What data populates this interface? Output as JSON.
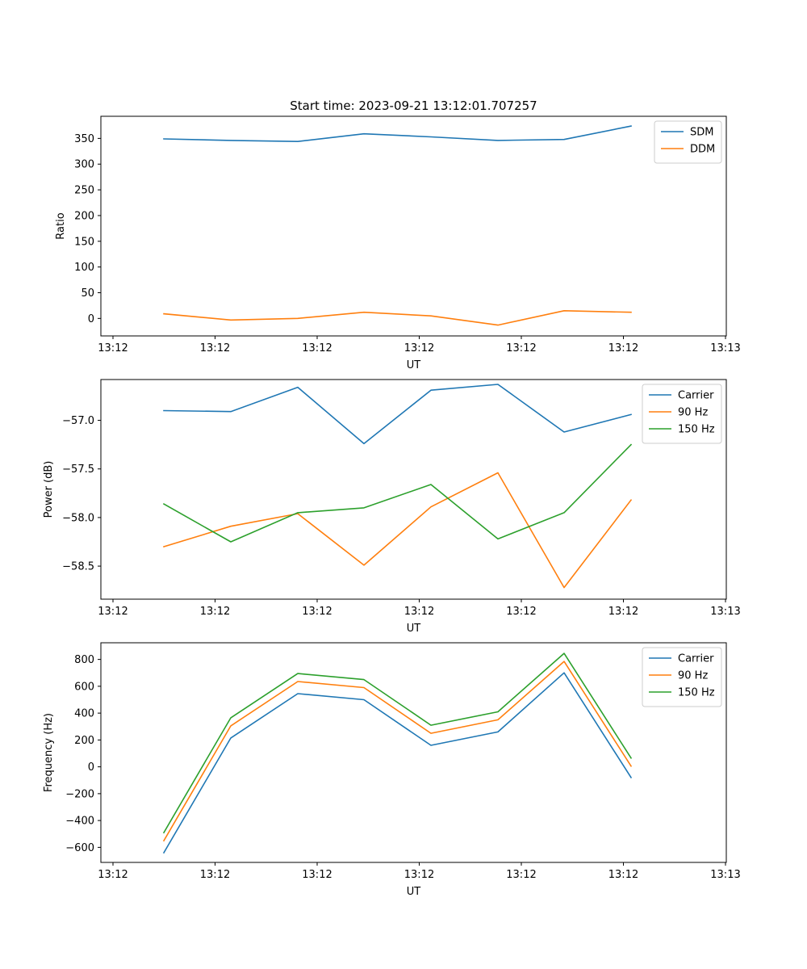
{
  "title": "Start time: 2023-09-21 13:12:01.707257",
  "colors": {
    "blue": "#1f77b4",
    "orange": "#ff7f0e",
    "green": "#2ca02c"
  },
  "chart_data": [
    {
      "type": "line",
      "title": "Start time: 2023-09-21 13:12:01.707257",
      "xlabel": "UT",
      "ylabel": "Ratio",
      "xtick_labels": [
        "13:12",
        "13:12",
        "13:12",
        "13:12",
        "13:12",
        "13:12",
        "13:13"
      ],
      "ytick_labels": [
        "0",
        "50",
        "100",
        "150",
        "200",
        "250",
        "300",
        "350"
      ],
      "yticks": [
        0,
        50,
        100,
        150,
        200,
        250,
        300,
        350
      ],
      "ylim": [
        -34,
        393
      ],
      "legend_position": "top-right",
      "series": [
        {
          "name": "SDM",
          "color": "#1f77b4",
          "values": [
            349,
            346,
            344,
            359,
            353,
            346,
            348,
            374
          ]
        },
        {
          "name": "DDM",
          "color": "#ff7f0e",
          "values": [
            9,
            -3,
            0,
            12,
            5,
            -13,
            15,
            12
          ]
        }
      ]
    },
    {
      "type": "line",
      "xlabel": "UT",
      "ylabel": "Power (dB)",
      "xtick_labels": [
        "13:12",
        "13:12",
        "13:12",
        "13:12",
        "13:12",
        "13:12",
        "13:13"
      ],
      "ytick_labels": [
        "−57.0",
        "−57.5",
        "−58.0",
        "−58.5"
      ],
      "yticks": [
        -57.0,
        -57.5,
        -58.0,
        -58.5
      ],
      "ylim": [
        -58.84,
        -56.58
      ],
      "legend_position": "top-right",
      "series": [
        {
          "name": "Carrier",
          "color": "#1f77b4",
          "values": [
            -56.9,
            -56.91,
            -56.66,
            -57.24,
            -56.69,
            -56.63,
            -57.12,
            -56.94
          ]
        },
        {
          "name": "90 Hz",
          "color": "#ff7f0e",
          "values": [
            -58.3,
            -58.09,
            -57.96,
            -58.49,
            -57.89,
            -57.54,
            -58.72,
            -57.82
          ]
        },
        {
          "name": "150 Hz",
          "color": "#2ca02c",
          "values": [
            -57.86,
            -58.25,
            -57.95,
            -57.9,
            -57.66,
            -58.22,
            -57.95,
            -57.25
          ]
        }
      ]
    },
    {
      "type": "line",
      "xlabel": "UT",
      "ylabel": "Frequency (Hz)",
      "xtick_labels": [
        "13:12",
        "13:12",
        "13:12",
        "13:12",
        "13:12",
        "13:12",
        "13:13"
      ],
      "ytick_labels": [
        "−600",
        "−400",
        "−200",
        "0",
        "200",
        "400",
        "600",
        "800"
      ],
      "yticks": [
        -600,
        -400,
        -200,
        0,
        200,
        400,
        600,
        800
      ],
      "ylim": [
        -712,
        924
      ],
      "legend_position": "top-right",
      "series": [
        {
          "name": "Carrier",
          "color": "#1f77b4",
          "values": [
            -640,
            215,
            545,
            500,
            160,
            260,
            700,
            -80
          ]
        },
        {
          "name": "90 Hz",
          "color": "#ff7f0e",
          "values": [
            -550,
            305,
            635,
            590,
            250,
            350,
            785,
            5
          ]
        },
        {
          "name": "150 Hz",
          "color": "#2ca02c",
          "values": [
            -490,
            365,
            695,
            650,
            310,
            410,
            845,
            65
          ]
        }
      ]
    }
  ]
}
